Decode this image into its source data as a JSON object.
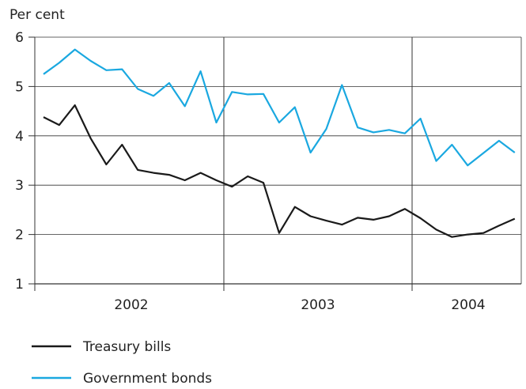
{
  "chart_data": {
    "type": "line",
    "ylabel": "Per cent",
    "ylim": [
      1,
      6
    ],
    "yticks": [
      "1",
      "2",
      "3",
      "4",
      "5",
      "6"
    ],
    "year_labels": [
      "2002",
      "2003",
      "2004"
    ],
    "grid": true,
    "legend_position": "bottom-left",
    "x": [
      "2002-01",
      "2002-02",
      "2002-03",
      "2002-04",
      "2002-05",
      "2002-06",
      "2002-07",
      "2002-08",
      "2002-09",
      "2002-10",
      "2002-11",
      "2002-12",
      "2003-01",
      "2003-02",
      "2003-03",
      "2003-04",
      "2003-05",
      "2003-06",
      "2003-07",
      "2003-08",
      "2003-09",
      "2003-10",
      "2003-11",
      "2003-12",
      "2004-01",
      "2004-02",
      "2004-03",
      "2004-04",
      "2004-05",
      "2004-06",
      "2004-07"
    ],
    "series": [
      {
        "name": "Treasury bills",
        "color": "#1a1a1a",
        "values": [
          4.38,
          4.22,
          4.62,
          3.95,
          3.42,
          3.82,
          3.31,
          3.25,
          3.21,
          3.1,
          3.25,
          3.1,
          2.97,
          3.18,
          3.05,
          2.03,
          2.56,
          2.37,
          2.28,
          2.2,
          2.34,
          2.3,
          2.37,
          2.52,
          2.33,
          2.1,
          1.95,
          2.0,
          2.03,
          2.18,
          2.32
        ]
      },
      {
        "name": "Government bonds",
        "color": "#1aa8e0",
        "values": [
          5.25,
          5.48,
          5.75,
          5.52,
          5.33,
          5.35,
          4.95,
          4.81,
          5.07,
          4.6,
          5.31,
          4.27,
          4.89,
          4.84,
          4.85,
          4.27,
          4.58,
          3.66,
          4.14,
          5.03,
          4.17,
          4.07,
          4.12,
          4.05,
          4.35,
          3.49,
          3.82,
          3.4,
          3.65,
          3.9,
          3.66
        ]
      }
    ]
  }
}
